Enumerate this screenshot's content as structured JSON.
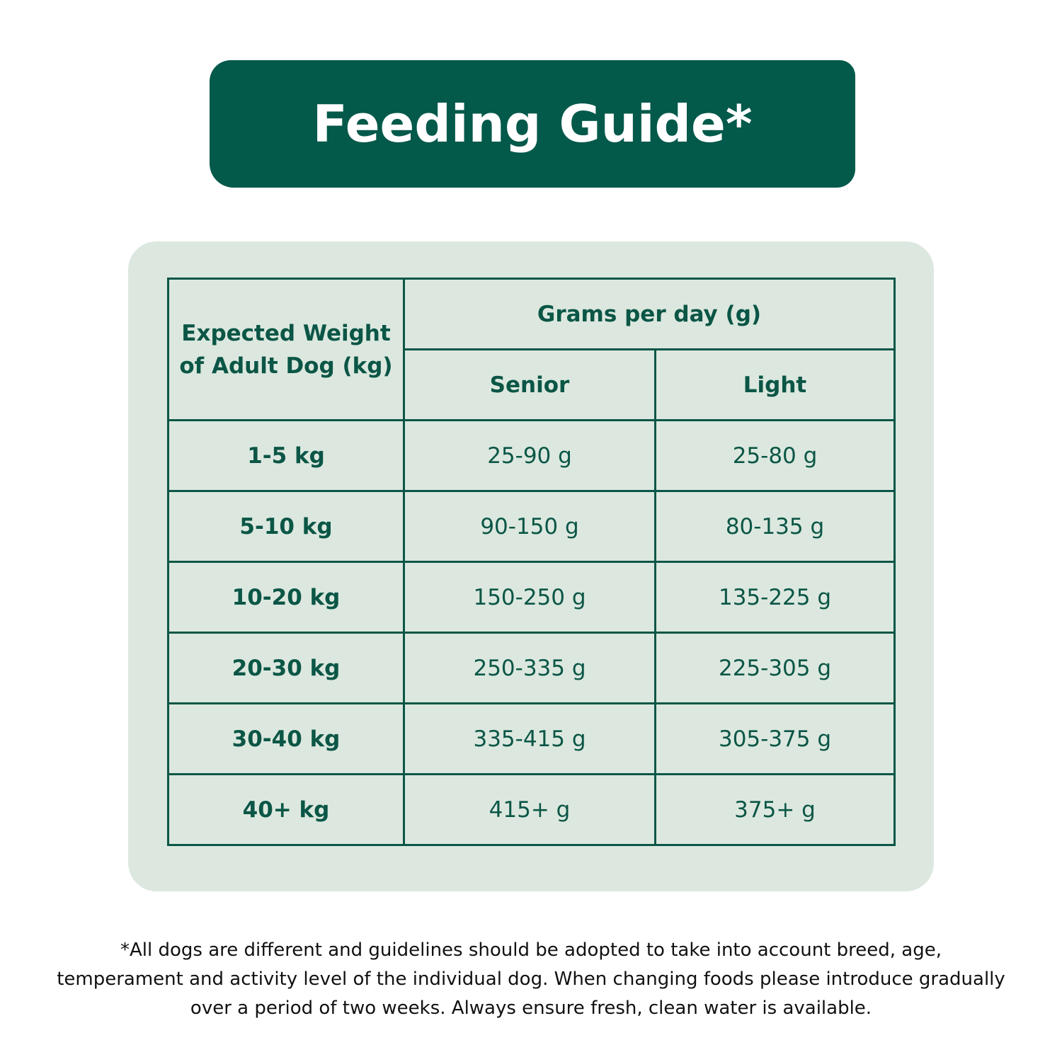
{
  "header": {
    "title": "Feeding Guide*"
  },
  "table": {
    "corner": "Expected Weight of Adult Dog (kg)",
    "group": "Grams per day (g)",
    "columns": [
      "Senior",
      "Light"
    ],
    "rows": [
      [
        "1-5 kg",
        "25-90 g",
        "25-80 g"
      ],
      [
        "5-10 kg",
        "90-150 g",
        "80-135 g"
      ],
      [
        "10-20 kg",
        "150-250 g",
        "135-225 g"
      ],
      [
        "20-30 kg",
        "250-335 g",
        "225-305 g"
      ],
      [
        "30-40 kg",
        "335-415 g",
        "305-375 g"
      ],
      [
        "40+ kg",
        "415+ g",
        "375+ g"
      ]
    ]
  },
  "footnote": "*All dogs are different and guidelines should be adopted to take into account breed, age, temperament and activity level of the individual dog. When changing foods please introduce gradually over a period of two weeks. Always ensure fresh, clean water is available."
}
